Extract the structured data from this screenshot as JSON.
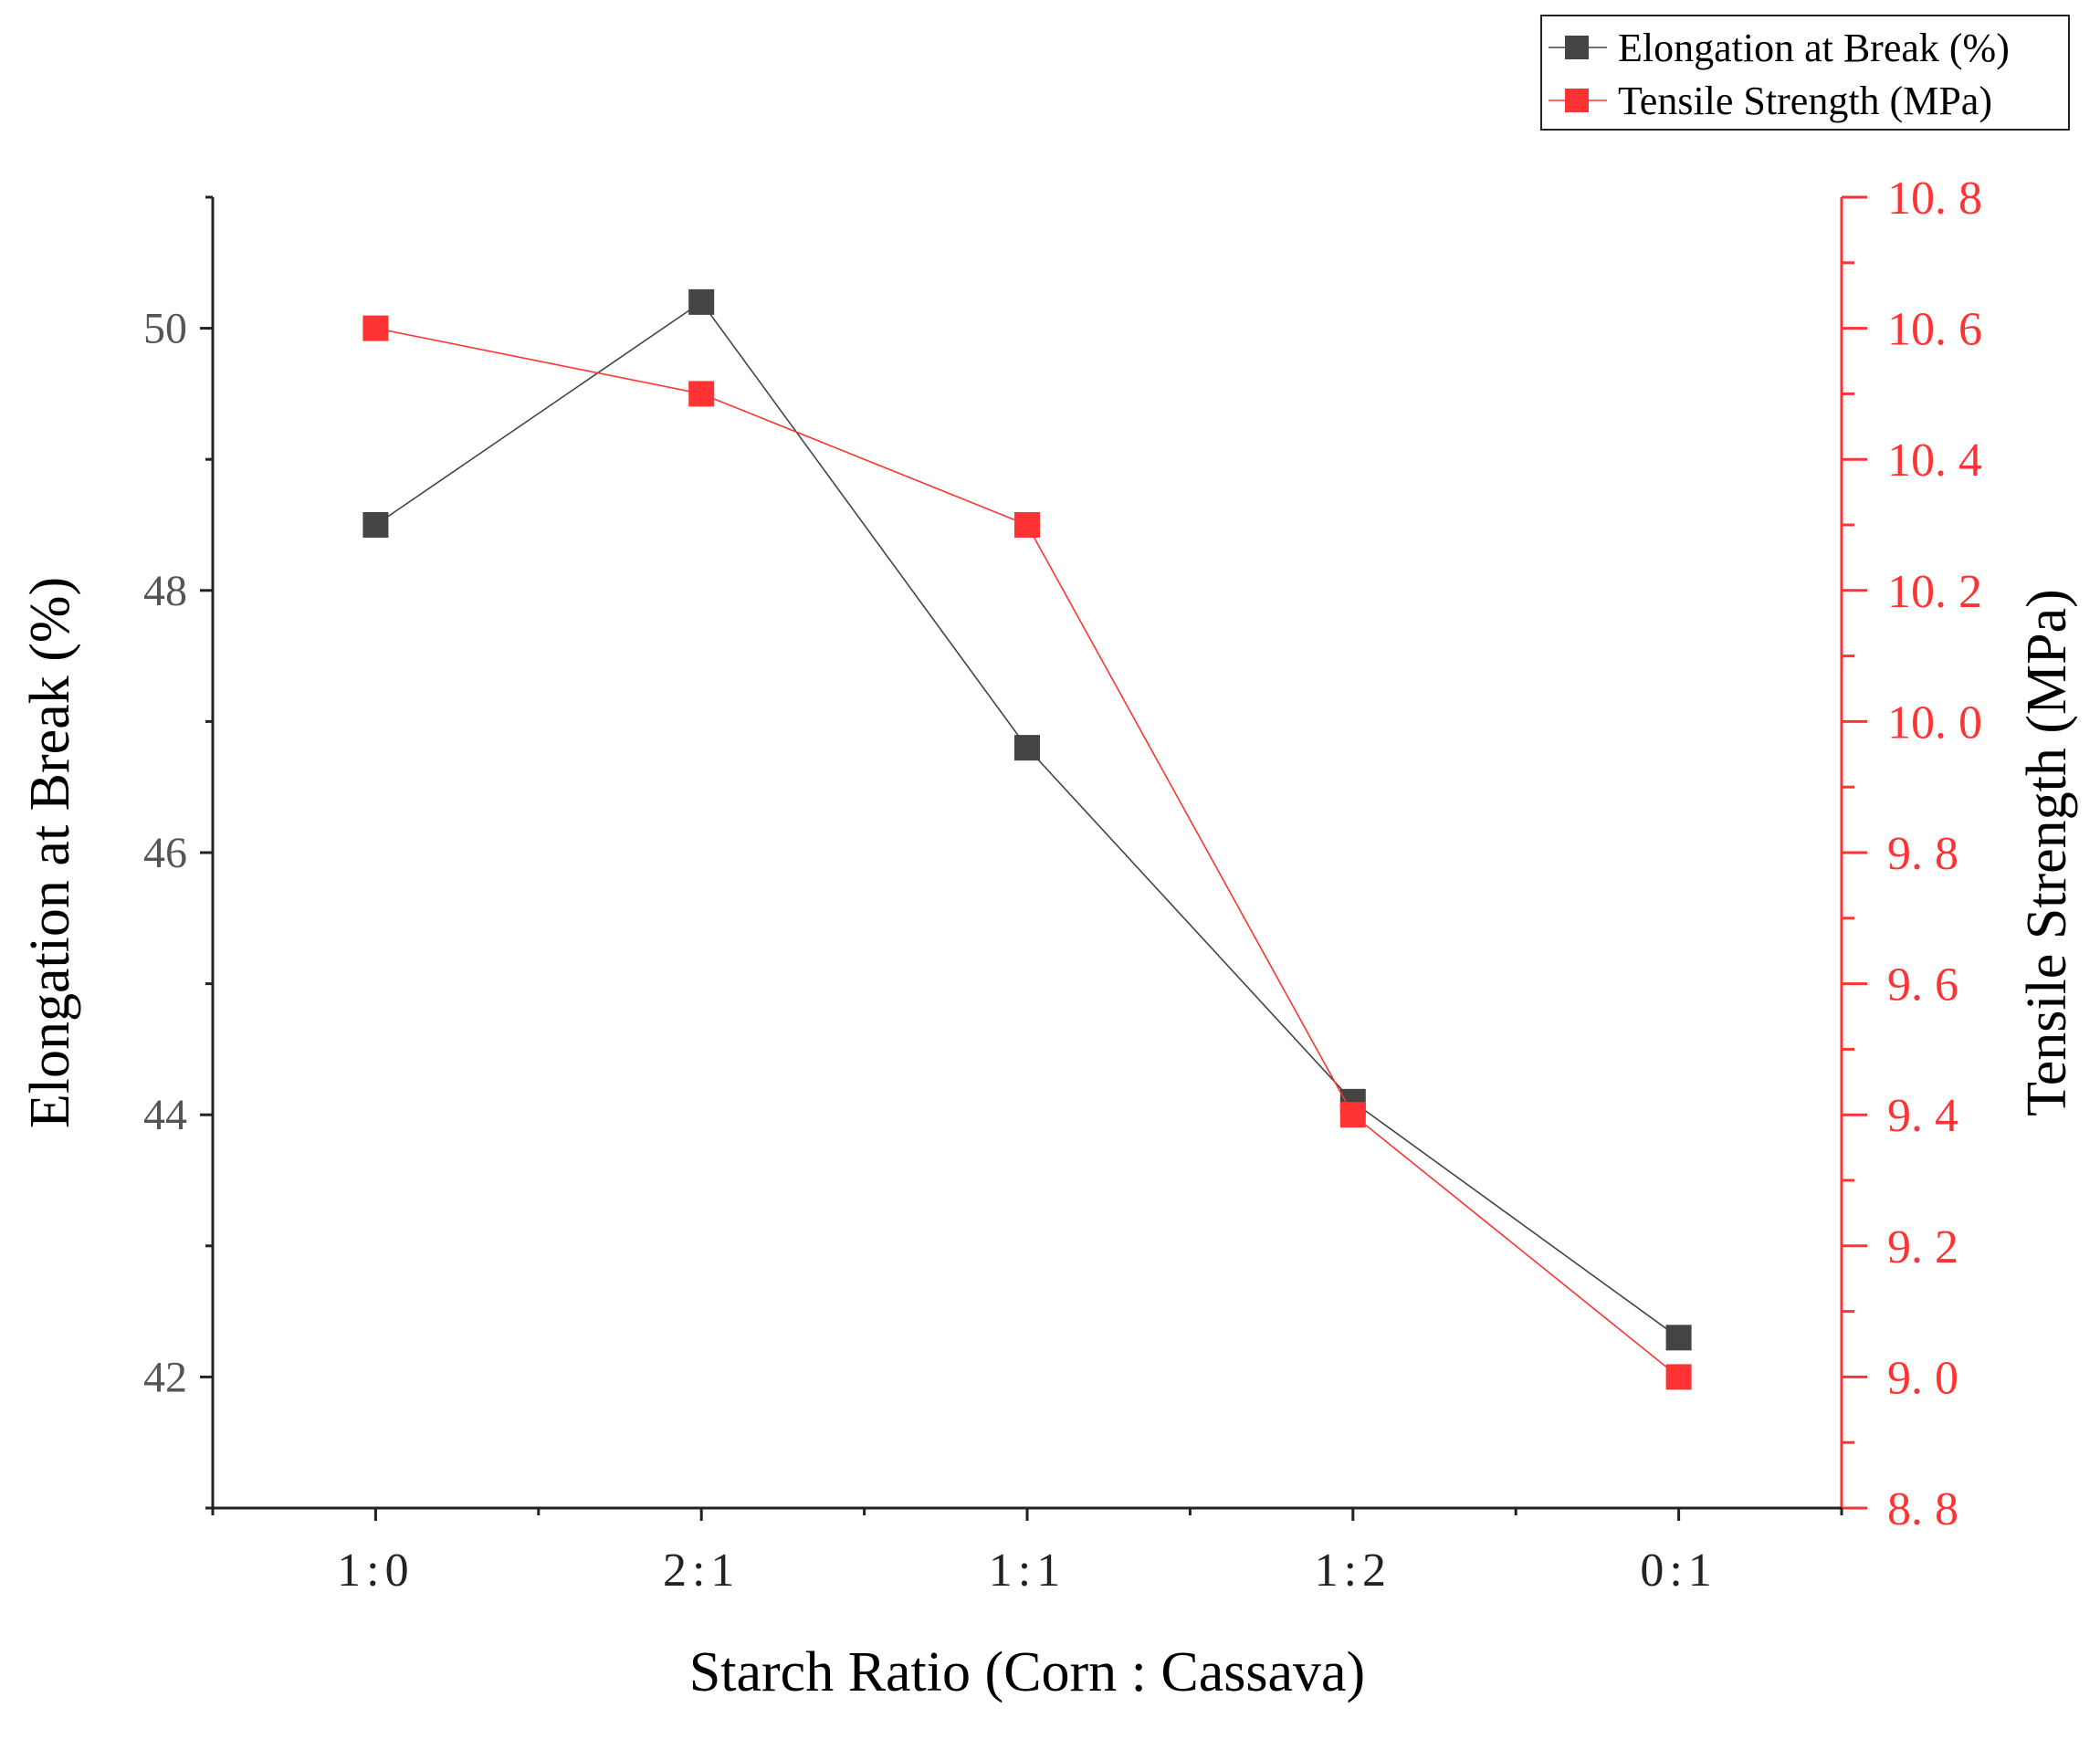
{
  "chart_data": {
    "type": "line",
    "title": "",
    "xlabel": "Starch Ratio (Corn : Cassava)",
    "ylabel": "Elongation at Break (%)",
    "y2label": "Tensile Strength (MPa)",
    "categories": [
      "1:0",
      "2:1",
      "1:1",
      "1:2",
      "0:1"
    ],
    "ylim": [
      41,
      51
    ],
    "y2lim": [
      8.8,
      10.8
    ],
    "yticks": [
      "42",
      "44",
      "46",
      "48",
      "50"
    ],
    "y2ticks": [
      "8.8",
      "9.0",
      "9.2",
      "9.4",
      "9.6",
      "9.8",
      "10.0",
      "10.2",
      "10.4",
      "10.6",
      "10.8"
    ],
    "legend_position": "top-right",
    "grid": false,
    "series": [
      {
        "name": "Elongation at Break (%)",
        "axis": "left",
        "color": "#444444",
        "marker": "square",
        "values": [
          48.5,
          50.2,
          46.8,
          44.1,
          42.3
        ]
      },
      {
        "name": "Tensile Strength (MPa)",
        "axis": "right",
        "color": "#ff3333",
        "marker": "square",
        "values": [
          10.6,
          10.5,
          10.3,
          9.4,
          9.0
        ]
      }
    ]
  }
}
